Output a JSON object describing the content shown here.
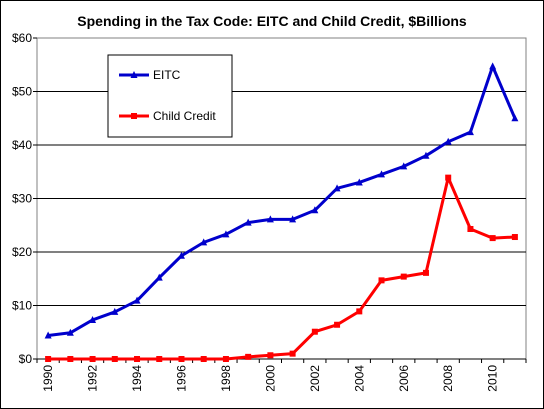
{
  "chart_data": {
    "type": "line",
    "title": "Spending in the Tax Code: EITC and Child Credit, $Billions",
    "xlabel": "",
    "ylabel": "",
    "x": [
      1990,
      1991,
      1992,
      1993,
      1994,
      1995,
      1996,
      1997,
      1998,
      1999,
      2000,
      2001,
      2002,
      2003,
      2004,
      2005,
      2006,
      2007,
      2008,
      2009,
      2010,
      2011
    ],
    "x_tick_labels": [
      "1990",
      "1992",
      "1994",
      "1996",
      "1998",
      "2000",
      "2002",
      "2004",
      "2006",
      "2008",
      "2010"
    ],
    "ylim": [
      0,
      60
    ],
    "y_tick_labels": [
      "$0",
      "$10",
      "$20",
      "$30",
      "$40",
      "$50",
      "$60"
    ],
    "grid": "horizontal",
    "legend_position": "top-left inside",
    "series": [
      {
        "name": "EITC",
        "color": "#0000cc",
        "marker": "triangle",
        "values": [
          4.4,
          4.9,
          7.3,
          8.8,
          10.9,
          15.2,
          19.3,
          21.8,
          23.3,
          25.5,
          26.1,
          26.1,
          27.8,
          31.9,
          33.0,
          34.5,
          36.0,
          38.0,
          40.6,
          42.4,
          54.7,
          45.0
        ]
      },
      {
        "name": "Child Credit",
        "color": "#ff0000",
        "marker": "square",
        "values": [
          0,
          0,
          0,
          0,
          0,
          0,
          0,
          0,
          0,
          0.4,
          0.7,
          1.0,
          5.1,
          6.4,
          8.9,
          14.7,
          15.4,
          16.1,
          33.9,
          24.3,
          22.6,
          22.8
        ]
      }
    ]
  }
}
